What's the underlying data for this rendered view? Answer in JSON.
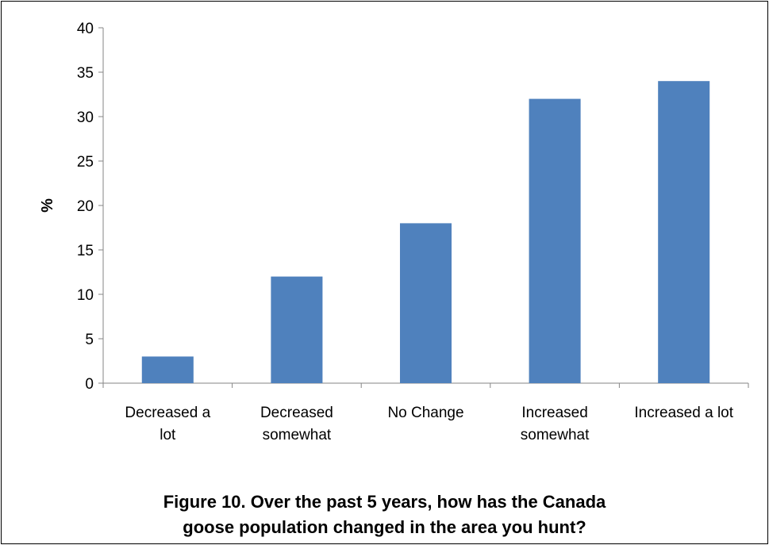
{
  "chart_data": {
    "type": "bar",
    "categories": [
      [
        "Decreased a",
        "lot"
      ],
      [
        "Decreased",
        "somewhat"
      ],
      [
        "No Change"
      ],
      [
        "Increased",
        "somewhat"
      ],
      [
        "Increased a lot"
      ]
    ],
    "values": [
      3,
      12,
      18,
      32,
      34
    ],
    "ylabel": "%",
    "ylim": [
      0,
      40
    ],
    "yticks": [
      0,
      5,
      10,
      15,
      20,
      25,
      30,
      35,
      40
    ],
    "bar_color": "#4F81BD",
    "grid": false,
    "legend": "none"
  },
  "caption": {
    "line1": "Figure 10. Over the past 5 years, how has the Canada",
    "line2": "goose population changed in the area you hunt?"
  }
}
